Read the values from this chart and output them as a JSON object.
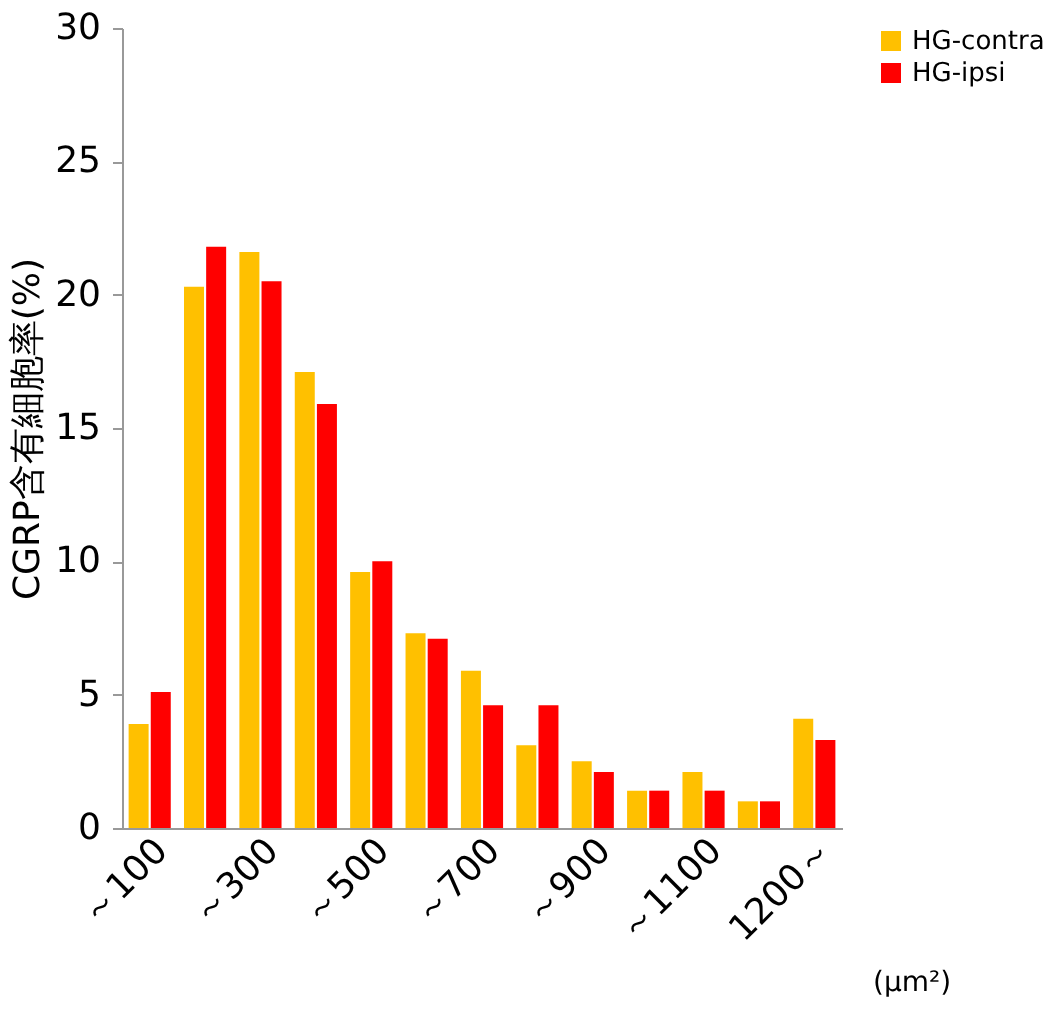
{
  "chart_data": {
    "type": "bar",
    "ylabel": "CGRP含有細胞率(%)",
    "xlabel": "(μm²)",
    "categories": [
      "～100",
      null,
      "～300",
      null,
      "～500",
      null,
      "～700",
      null,
      "～900",
      null,
      "～1100",
      null,
      "1200～"
    ],
    "series": [
      {
        "name": "HG-contra",
        "color": "#ffc000",
        "values": [
          3.9,
          20.3,
          21.6,
          17.1,
          9.6,
          7.3,
          5.9,
          3.1,
          2.5,
          1.4,
          2.1,
          1.0,
          4.1
        ]
      },
      {
        "name": "HG-ipsi",
        "color": "#ff0000",
        "values": [
          5.1,
          21.8,
          20.5,
          15.9,
          10.0,
          7.1,
          4.6,
          4.6,
          2.1,
          1.4,
          1.4,
          1.0,
          3.3
        ]
      }
    ],
    "ylim": [
      0,
      30
    ],
    "yticks": [
      0,
      5,
      10,
      15,
      20,
      25,
      30
    ],
    "grid": false,
    "legend": "right"
  }
}
